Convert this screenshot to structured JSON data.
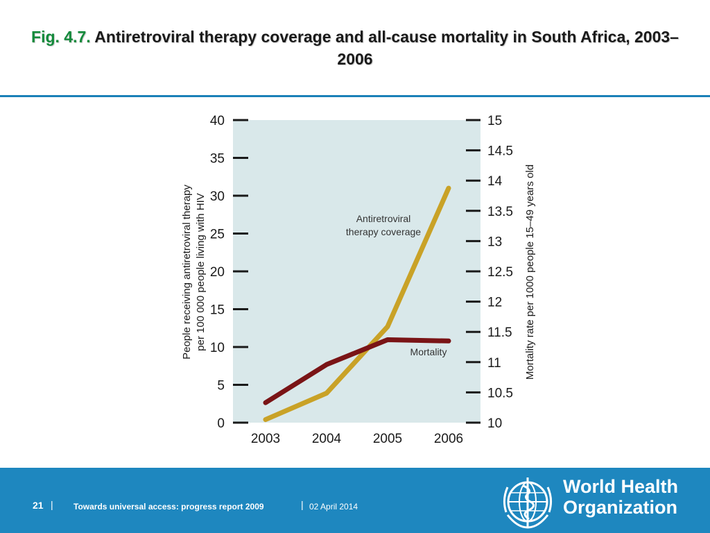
{
  "slide": {
    "fig_label": "Fig. 4.7.",
    "title": "Antiretroviral therapy coverage and all-cause mortality in South Africa, 2003–2006"
  },
  "chart_data": {
    "type": "line",
    "categories": [
      "2003",
      "2004",
      "2005",
      "2006"
    ],
    "series": [
      {
        "name": "Antiretroviral therapy coverage",
        "axis": "left",
        "color": "#c9a227",
        "values": [
          0.4,
          3.9,
          12.7,
          31.0
        ]
      },
      {
        "name": "Mortality",
        "axis": "right",
        "color": "#7a1416",
        "values": [
          10.33,
          10.96,
          11.37,
          11.35
        ]
      }
    ],
    "ylabel_left": "People receiving antiretroviral therapy per 100 000 people living with HIV",
    "ylabel_right": "Mortality rate per 1000 people 15–49 years old",
    "ylim_left": [
      0,
      40
    ],
    "ylim_right": [
      10,
      15
    ],
    "yticks_left": [
      "0",
      "5",
      "10",
      "15",
      "20",
      "25",
      "30",
      "35",
      "40"
    ],
    "yticks_right": [
      "10",
      "10.5",
      "11",
      "11.5",
      "12",
      "12.5",
      "13",
      "13.5",
      "14",
      "14.5",
      "15"
    ],
    "annotations": [
      {
        "text_lines": [
          "Antiretroviral",
          "therapy coverage"
        ]
      },
      {
        "text_lines": [
          "Mortality"
        ]
      }
    ],
    "plot_background": "#d9e8ea",
    "grid": false
  },
  "footer": {
    "page_number": "21",
    "separator": "|",
    "report_title": "Towards universal access: progress report 2009",
    "date": "02 April 2014",
    "org_name_lines": [
      "World Health",
      "Organization"
    ],
    "background_color": "#1e87bf",
    "logo_icon": "who-emblem-icon"
  }
}
